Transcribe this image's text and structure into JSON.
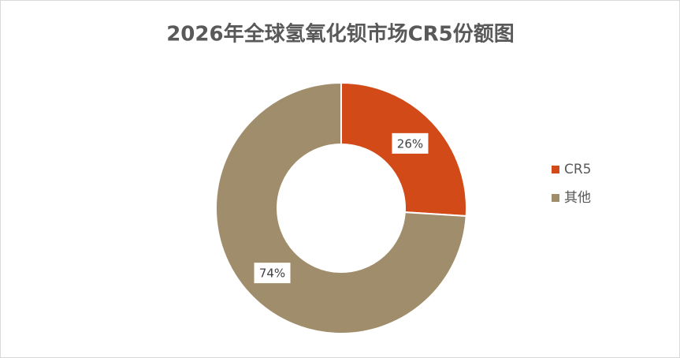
{
  "chart_data": {
    "type": "donut",
    "title": "2026年全球氢氧化钡市场CR5份额图",
    "categories": [
      "CR5",
      "其他"
    ],
    "values": [
      26,
      74
    ],
    "value_labels": [
      "26%",
      "74%"
    ],
    "colors": [
      "#d24a18",
      "#a08d6b"
    ],
    "legend": "right"
  }
}
